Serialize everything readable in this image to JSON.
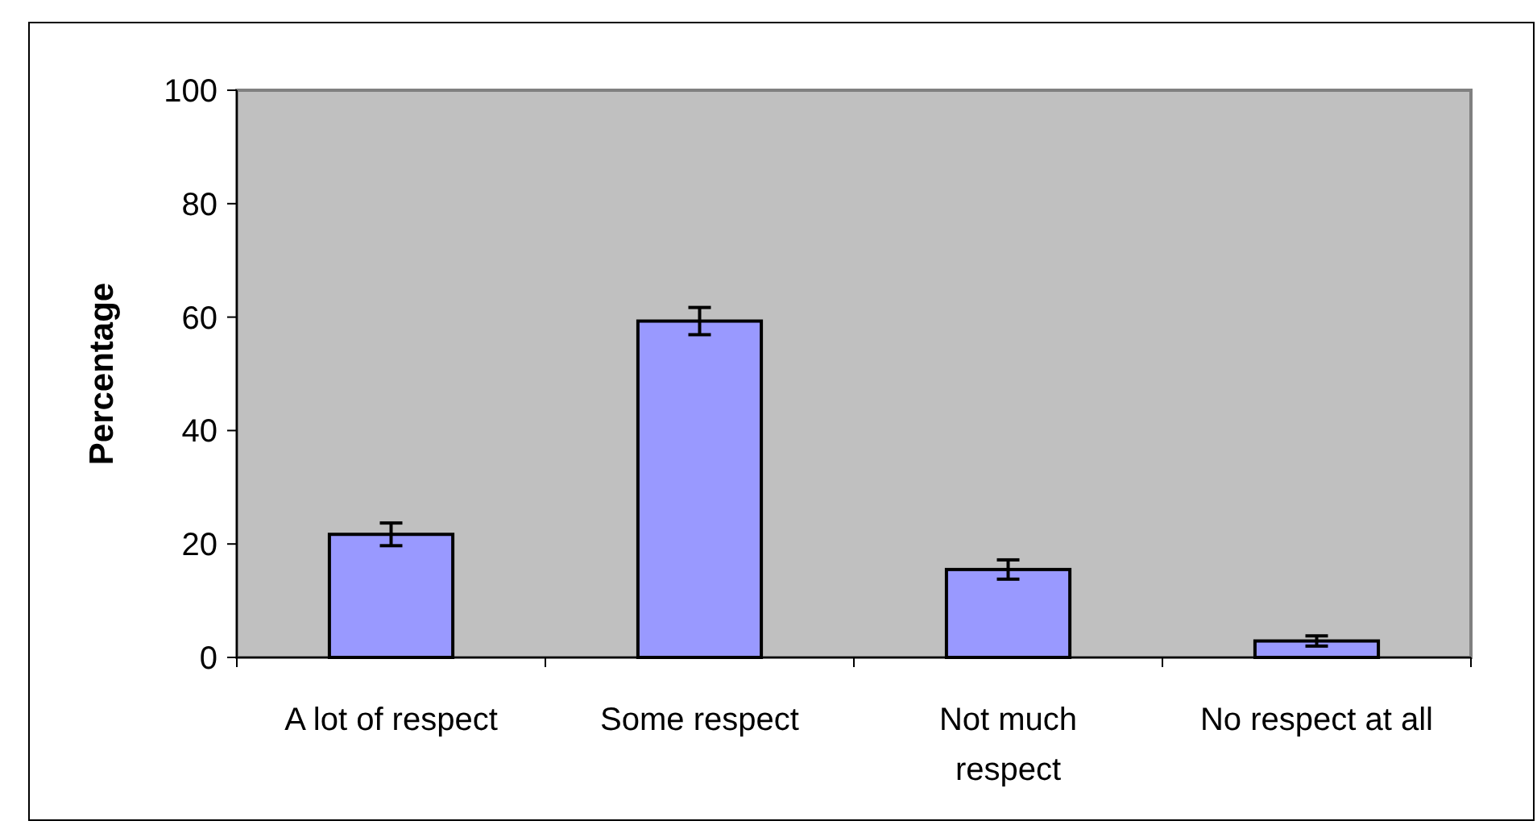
{
  "chart_data": {
    "type": "bar",
    "ylabel": "Percentage",
    "categories": [
      "A lot of respect",
      "Some respect",
      "Not much respect",
      "No respect at all"
    ],
    "values": [
      21.7,
      59.3,
      15.5,
      2.9
    ],
    "errors": [
      2.0,
      2.4,
      1.7,
      0.9
    ],
    "color": "#9999ff",
    "ylim": [
      0,
      100
    ],
    "yticks": [
      0,
      20,
      40,
      60,
      80,
      100
    ],
    "grid": false
  }
}
